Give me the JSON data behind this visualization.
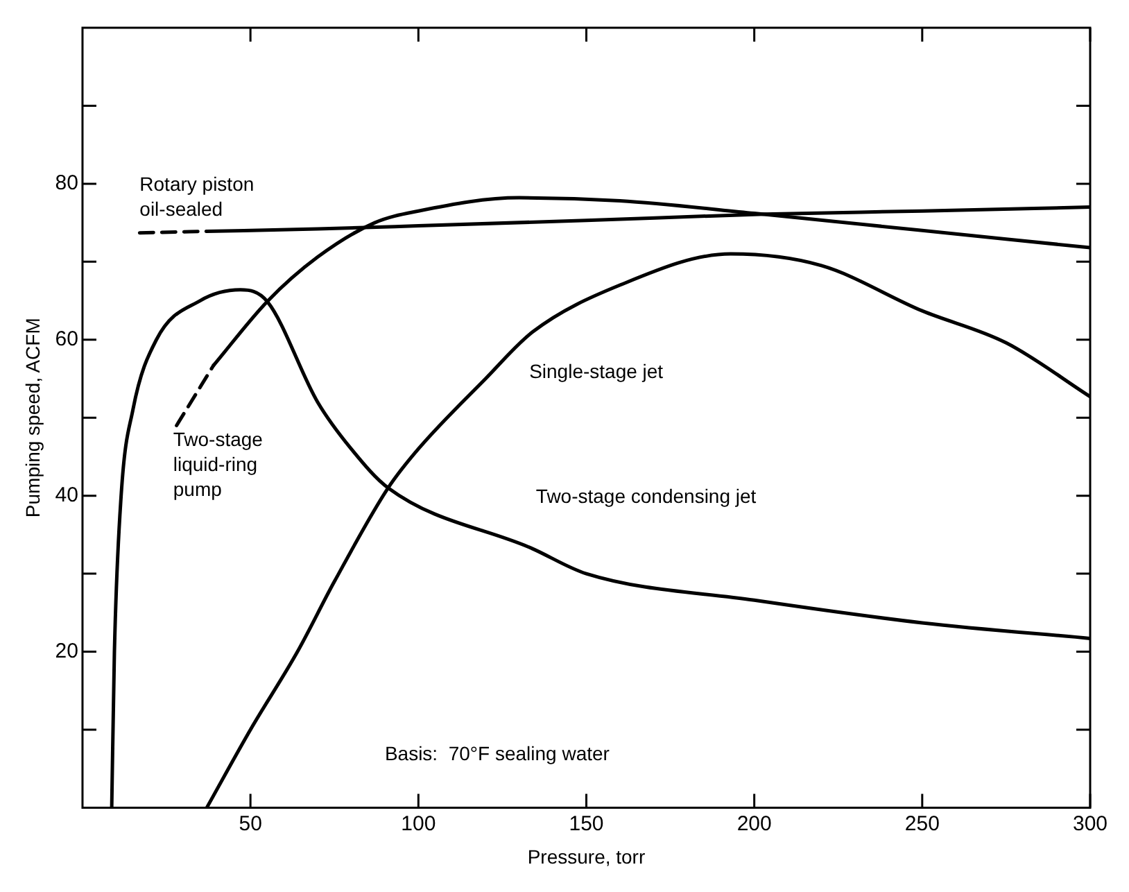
{
  "chart_data": {
    "type": "line",
    "xlabel": "Pressure, torr",
    "ylabel": "Pumping speed, ACFM",
    "xlim": [
      0,
      300
    ],
    "xticks": [
      50,
      100,
      150,
      200,
      250,
      300
    ],
    "ylim": [
      0,
      100
    ],
    "yticks": [
      {
        "value": 10,
        "label": null
      },
      20,
      {
        "value": 30,
        "label": null
      },
      40,
      {
        "value": 50,
        "label": null
      },
      60,
      {
        "value": 70,
        "label": null
      },
      80,
      {
        "value": 90,
        "label": null
      }
    ],
    "grid": false,
    "legend": false,
    "marker": "none",
    "annotations": [
      "Basis:  70°F sealing water"
    ],
    "series": [
      {
        "name": "Rotary piston oil-sealed",
        "color": "#000000",
        "line_style": "solid",
        "x": [
          37,
          70,
          100,
          150,
          203,
          250,
          300
        ],
        "values": [
          73.9,
          74.2,
          74.6,
          75.3,
          76.1,
          76.5,
          77
        ]
      },
      {
        "color": "#000000",
        "line_style": "dashed",
        "x": [
          17,
          37
        ],
        "values": [
          73.7,
          73.9
        ]
      },
      {
        "color": "#000000",
        "line_style": "solid",
        "x": [
          39,
          55,
          70,
          87,
          100,
          130,
          160,
          200,
          250,
          300
        ],
        "values": [
          56.7,
          64.9,
          70.6,
          75,
          76.5,
          78.2,
          77.8,
          76.2,
          74,
          71.8
        ]
      },
      {
        "name": "Two-stage liquid-ring pump",
        "color": "#000000",
        "line_style": "dashed",
        "x": [
          28,
          39
        ],
        "values": [
          49,
          56.7
        ]
      },
      {
        "name": "Two-stage condensing jet",
        "color": "#000000",
        "line_style": "solid",
        "x": [
          8.7,
          9.5,
          11.5,
          15,
          22,
          35,
          47,
          55,
          70,
          80,
          91,
          134,
          150,
          200,
          250,
          300
        ],
        "values": [
          0,
          20,
          40,
          51,
          60,
          65,
          66.4,
          64.9,
          52,
          46,
          41,
          33.2,
          30,
          26.6,
          23.7,
          21.7
        ]
      },
      {
        "name": "Single-stage jet",
        "color": "#000000",
        "line_style": "solid",
        "x": [
          37,
          50,
          64,
          75,
          91,
          100,
          120,
          134,
          160,
          193,
          220,
          250,
          275,
          300
        ],
        "values": [
          0,
          10,
          20,
          29,
          41,
          46,
          55,
          61,
          67,
          71,
          69.5,
          63.7,
          59.6,
          52.7
        ]
      }
    ]
  }
}
